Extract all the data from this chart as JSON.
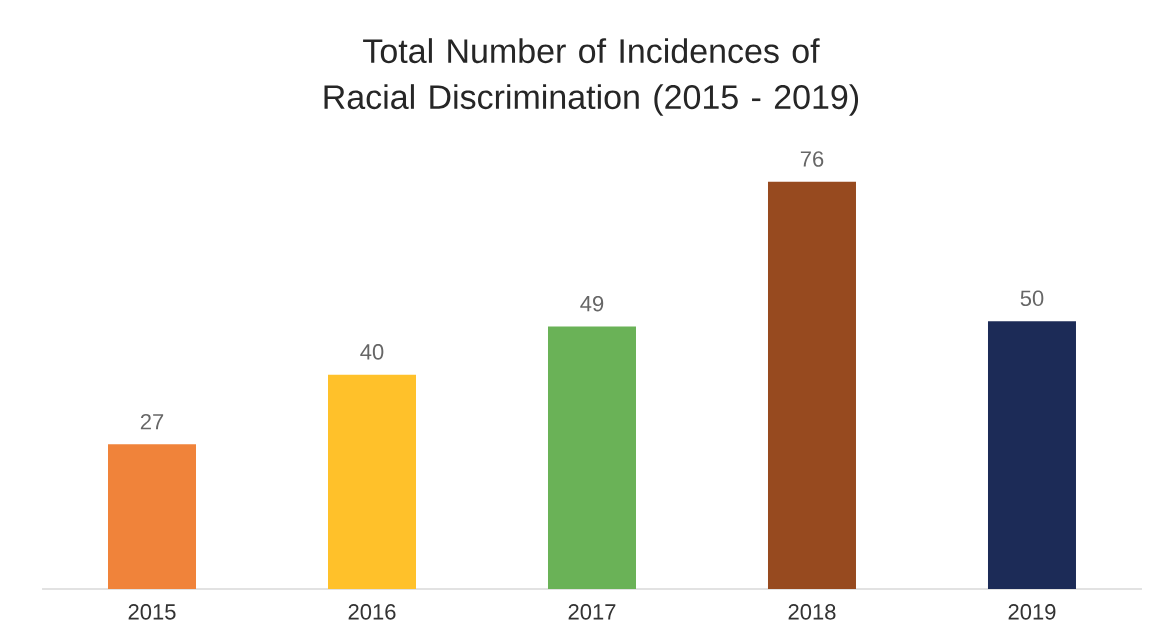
{
  "chart_data": {
    "type": "bar",
    "title": "Total Number of Incidences of Racial Discrimination (2015 - 2019)",
    "categories": [
      "2015",
      "2016",
      "2017",
      "2018",
      "2019"
    ],
    "values": [
      27,
      40,
      49,
      76,
      50
    ],
    "colors": [
      "#f0833a",
      "#ffc12a",
      "#6ab257",
      "#974a1f",
      "#1c2b57"
    ],
    "data_labels": true
  }
}
